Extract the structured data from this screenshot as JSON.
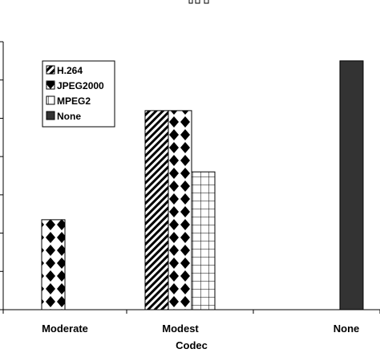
{
  "chart_data": {
    "type": "bar",
    "title": "",
    "xlabel": "Codec",
    "ylabel": "",
    "categories": [
      "Moderate",
      "Modest",
      "None"
    ],
    "ylim": [
      0,
      7
    ],
    "series": [
      {
        "name": "H.264",
        "pattern": "diagonal",
        "values": [
          null,
          5.2,
          null
        ]
      },
      {
        "name": "JPEG2000",
        "pattern": "diamond",
        "values": [
          2.35,
          5.2,
          null
        ]
      },
      {
        "name": "MPEG2",
        "pattern": "grid",
        "values": [
          null,
          3.6,
          null
        ]
      },
      {
        "name": "None",
        "pattern": "solid",
        "values": [
          null,
          null,
          6.5
        ]
      }
    ],
    "legend_position": "top-left",
    "grid": false,
    "colors": {
      "solid": "#333333",
      "stroke": "#000000"
    }
  }
}
